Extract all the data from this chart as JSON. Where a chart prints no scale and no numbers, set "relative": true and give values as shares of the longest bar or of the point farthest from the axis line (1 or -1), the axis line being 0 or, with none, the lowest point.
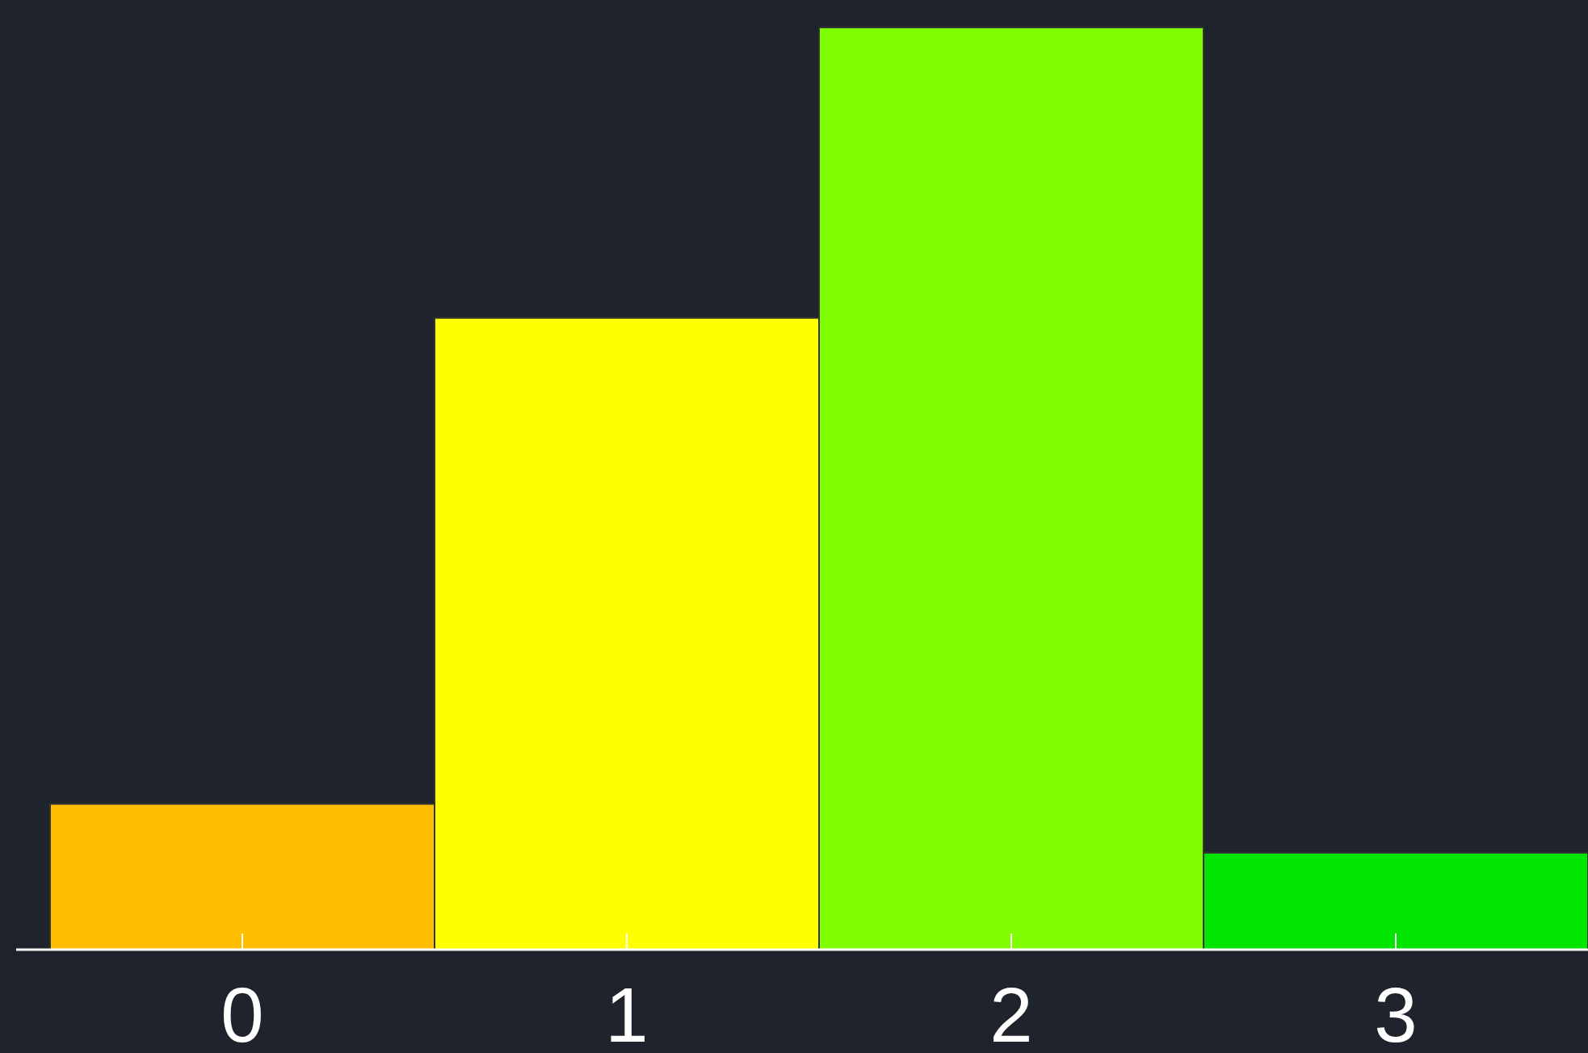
{
  "chart_data": {
    "type": "bar",
    "relative": true,
    "categories": [
      "0",
      "1",
      "2",
      "3"
    ],
    "values": [
      0.158,
      0.685,
      1,
      0.105
    ],
    "colors": [
      "#ffbf00",
      "#ffff00",
      "#80ff00",
      "#00e600"
    ]
  }
}
